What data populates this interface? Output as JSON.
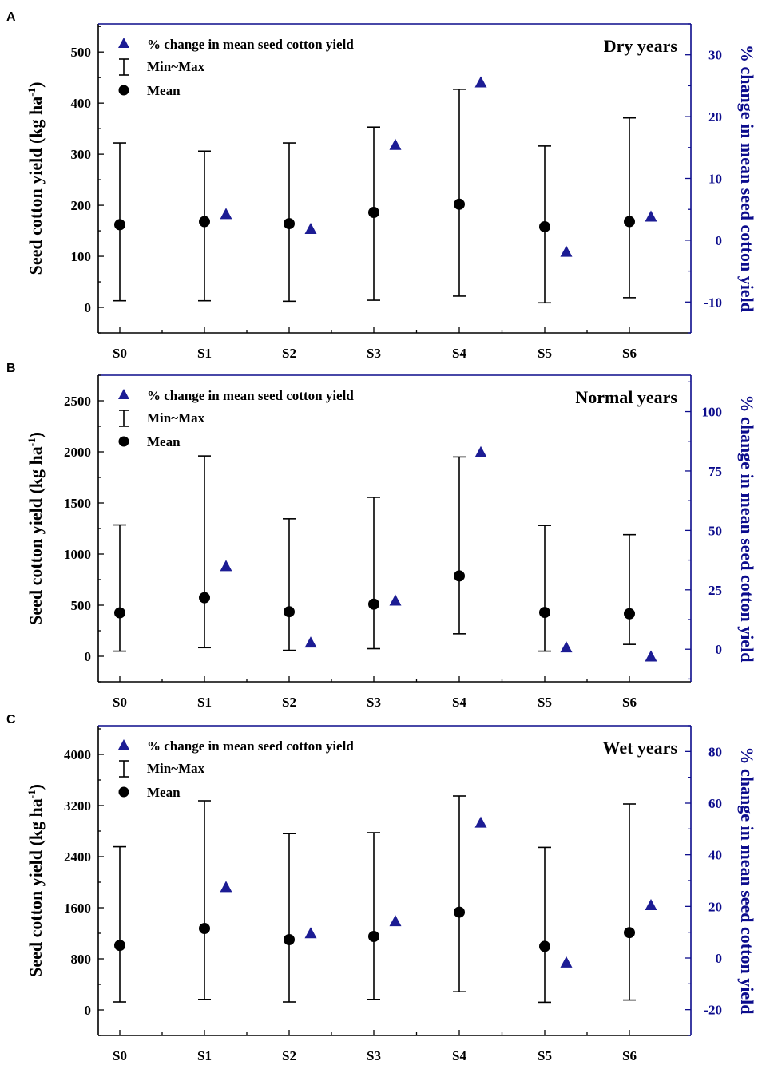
{
  "chart_data": [
    {
      "type": "scatter",
      "panel_letter": "A",
      "title": "Dry years",
      "categories": [
        "S0",
        "S1",
        "S2",
        "S3",
        "S4",
        "S5",
        "S6"
      ],
      "ylabel_left": "Seed cotton yield (kg ha",
      "ylabel_left_sup": "-1",
      "ylabel_left_close": ")",
      "ylabel_right": "% change in mean seed cotton yield",
      "ylim_left": [
        -50,
        555
      ],
      "yticks_left": [
        0,
        100,
        200,
        300,
        400,
        500
      ],
      "ylim_right": [
        -15,
        35
      ],
      "yticks_right": [
        -10,
        0,
        10,
        20,
        30
      ],
      "legend": {
        "pct_label": "% change in mean seed cotton yield",
        "minmax_label": "Min~Max",
        "mean_label": "Mean"
      },
      "series": [
        {
          "name": "Mean",
          "values": [
            162,
            168,
            164,
            186,
            202,
            158,
            168
          ]
        },
        {
          "name": "Min",
          "values": [
            13,
            13,
            12,
            14,
            22,
            9,
            19
          ]
        },
        {
          "name": "Max",
          "values": [
            322,
            306,
            322,
            353,
            427,
            316,
            371
          ]
        },
        {
          "name": "% change in mean seed cotton yield",
          "categories": [
            "S1",
            "S2",
            "S3",
            "S4",
            "S5",
            "S6"
          ],
          "values": [
            4.2,
            1.8,
            15.4,
            25.5,
            -1.9,
            3.8
          ]
        }
      ]
    },
    {
      "type": "scatter",
      "panel_letter": "B",
      "title": "Normal years",
      "categories": [
        "S0",
        "S1",
        "S2",
        "S3",
        "S4",
        "S5",
        "S6"
      ],
      "ylabel_left": "Seed cotton yield (kg ha",
      "ylabel_left_sup": "-1",
      "ylabel_left_close": ")",
      "ylabel_right": "% change in mean seed cotton yield",
      "ylim_left": [
        -250,
        2750
      ],
      "yticks_left": [
        0,
        500,
        1000,
        1500,
        2000,
        2500
      ],
      "ylim_right": [
        -13.7,
        115.3
      ],
      "yticks_right": [
        0,
        25,
        50,
        75,
        100
      ],
      "legend": {
        "pct_label": "% change in mean seed cotton yield",
        "minmax_label": "Min~Max",
        "mean_label": "Mean"
      },
      "series": [
        {
          "name": "Mean",
          "values": [
            425,
            573,
            436,
            510,
            786,
            429,
            416
          ]
        },
        {
          "name": "Min",
          "values": [
            50,
            84,
            58,
            74,
            220,
            50,
            116
          ]
        },
        {
          "name": "Max",
          "values": [
            1285,
            1960,
            1345,
            1555,
            1950,
            1280,
            1190
          ]
        },
        {
          "name": "% change in mean seed cotton yield",
          "categories": [
            "S1",
            "S2",
            "S3",
            "S4",
            "S5",
            "S6"
          ],
          "values": [
            34.9,
            2.7,
            20.4,
            82.8,
            0.7,
            -3.1
          ]
        }
      ]
    },
    {
      "type": "scatter",
      "panel_letter": "C",
      "title": "Wet years",
      "categories": [
        "S0",
        "S1",
        "S2",
        "S3",
        "S4",
        "S5",
        "S6"
      ],
      "ylabel_left": "Seed cotton yield (kg ha",
      "ylabel_left_sup": "-1",
      "ylabel_left_close": ")",
      "ylabel_right": "% change in mean seed cotton yield",
      "ylim_left": [
        -400,
        4450
      ],
      "yticks_left": [
        0,
        800,
        1600,
        2400,
        3200,
        4000
      ],
      "ylim_right": [
        -30,
        90
      ],
      "yticks_right": [
        -20,
        0,
        20,
        40,
        60,
        80
      ],
      "legend": {
        "pct_label": "% change in mean seed cotton yield",
        "minmax_label": "Min~Max",
        "mean_label": "Mean"
      },
      "series": [
        {
          "name": "Mean",
          "values": [
            1010,
            1275,
            1100,
            1150,
            1530,
            995,
            1210
          ]
        },
        {
          "name": "Min",
          "values": [
            125,
            165,
            125,
            165,
            285,
            120,
            155
          ]
        },
        {
          "name": "Max",
          "values": [
            2555,
            3275,
            2760,
            2775,
            3350,
            2545,
            3225
          ]
        },
        {
          "name": "% change in mean seed cotton yield",
          "categories": [
            "S1",
            "S2",
            "S3",
            "S4",
            "S5",
            "S6"
          ],
          "values": [
            27.4,
            9.5,
            14.2,
            52.4,
            -1.8,
            20.4
          ]
        }
      ]
    }
  ],
  "colors": {
    "right_axis": "#0c0c8c",
    "triangle": "#1c1c94",
    "ink": "#000000"
  }
}
